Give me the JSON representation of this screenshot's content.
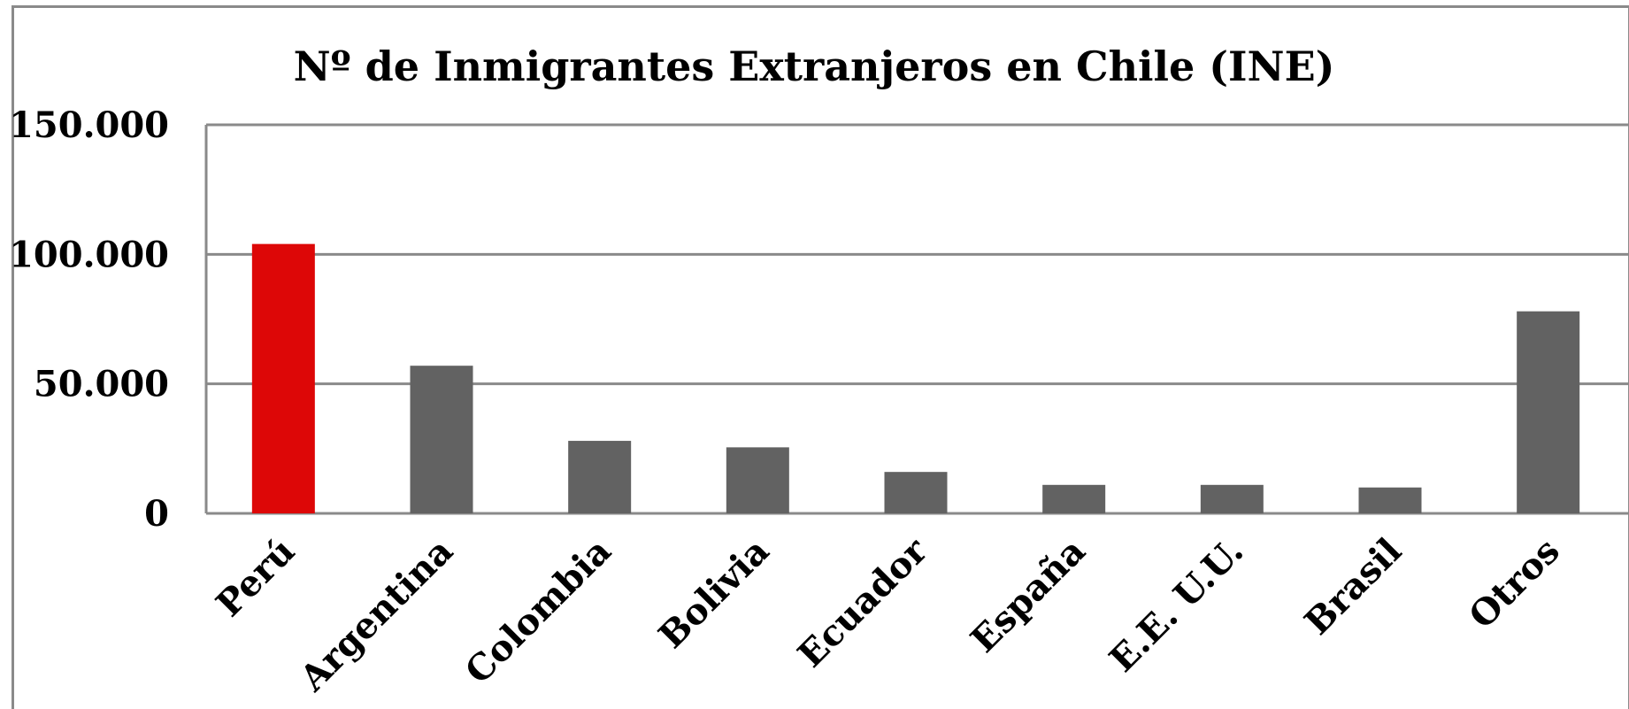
{
  "chart_data": {
    "type": "bar",
    "title": "Nº  de Inmigrantes Extranjeros en Chile (INE)",
    "categories": [
      "Perú",
      "Argentina",
      "Colombia",
      "Bolivia",
      "Ecuador",
      "España",
      "E.E. U.U.",
      "Brasil",
      "Otros"
    ],
    "values": [
      104000,
      57000,
      28000,
      25500,
      16000,
      11000,
      11000,
      10000,
      78000
    ],
    "ylim": [
      0,
      150000
    ],
    "yticks": [
      0,
      50000,
      100000,
      150000
    ],
    "ytick_labels": [
      "0",
      "50.000",
      "100.000",
      "150.000"
    ],
    "xlabel": "",
    "ylabel": "",
    "grid": true,
    "legend": "none",
    "colors": {
      "highlight": "#dd0707",
      "default": "#626262",
      "grid": "#8a8a8a"
    },
    "highlight_index": 0
  }
}
